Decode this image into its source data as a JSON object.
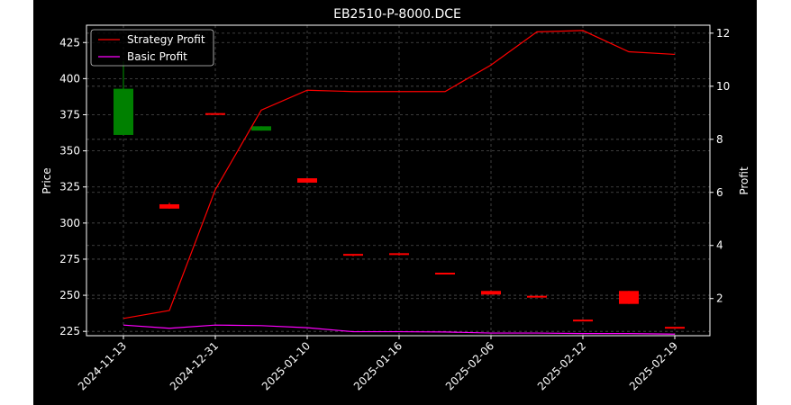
{
  "chart_data": {
    "type": "candlestick-with-lines",
    "title": "EB2510-P-8000.DCE",
    "xlabel": "",
    "ylabel_left": "Price",
    "ylabel_right": "Profit",
    "x_tick_labels": [
      "2024-11-13",
      "2024-12-31",
      "2025-01-10",
      "2025-01-16",
      "2025-02-06",
      "2025-02-12",
      "2025-02-19"
    ],
    "ylim_left": [
      222,
      437
    ],
    "yticks_left": [
      225,
      250,
      275,
      300,
      325,
      350,
      375,
      400,
      425
    ],
    "ylim_right": [
      0.6,
      12.3
    ],
    "yticks_right": [
      2,
      4,
      6,
      8,
      10,
      12
    ],
    "grid": true,
    "legend_position": "upper-left",
    "candles": [
      {
        "open": 361,
        "close": 393,
        "high": 412,
        "low": 361,
        "color": "#008000"
      },
      {
        "open": 313,
        "close": 310,
        "high": 314,
        "low": 310,
        "color": "#ff0000"
      },
      {
        "open": 375.5,
        "close": 375,
        "high": 375.5,
        "low": 375,
        "color": "#ff0000"
      },
      {
        "open": 364,
        "close": 367,
        "high": 367,
        "low": 364,
        "color": "#008000"
      },
      {
        "open": 331,
        "close": 328,
        "high": 331,
        "low": 328,
        "color": "#ff0000"
      },
      {
        "open": 278,
        "close": 277,
        "high": 278,
        "low": 277,
        "color": "#ff0000"
      },
      {
        "open": 278.5,
        "close": 277.5,
        "high": 278.5,
        "low": 277.5,
        "color": "#ff0000"
      },
      {
        "open": 265,
        "close": 264.5,
        "high": 265,
        "low": 264.5,
        "color": "#ff0000"
      },
      {
        "open": 253,
        "close": 250.5,
        "high": 253,
        "low": 250.5,
        "color": "#ff0000"
      },
      {
        "open": 249,
        "close": 248.5,
        "high": 249,
        "low": 248.5,
        "color": "#ff0000"
      },
      {
        "open": 232.5,
        "close": 232,
        "high": 232.5,
        "low": 232,
        "color": "#ff0000"
      },
      {
        "open": 253,
        "close": 244,
        "high": 253,
        "low": 244,
        "color": "#ff0000"
      },
      {
        "open": 227.5,
        "close": 227,
        "high": 227.5,
        "low": 227,
        "color": "#ff0000"
      }
    ],
    "series": [
      {
        "name": "Strategy Profit",
        "color": "#ff0000",
        "values": [
          1.25,
          1.55,
          6.1,
          9.1,
          9.85,
          9.8,
          9.8,
          9.8,
          10.8,
          12.05,
          12.1,
          11.3,
          11.2
        ]
      },
      {
        "name": "Basic Profit",
        "color": "#ff00ff",
        "values": [
          1.0,
          0.88,
          1.0,
          0.98,
          0.9,
          0.75,
          0.75,
          0.74,
          0.7,
          0.7,
          0.68,
          0.68,
          0.66
        ]
      }
    ]
  }
}
